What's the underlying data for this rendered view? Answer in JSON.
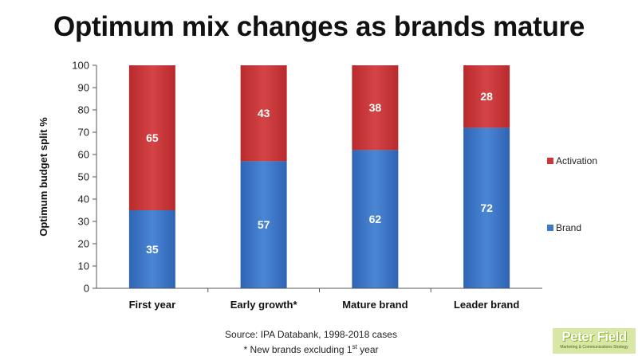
{
  "chart_data": {
    "type": "bar",
    "stacked": true,
    "title": "Optimum mix changes as brands mature",
    "ylabel": "Optimum budget split %",
    "xlabel": "",
    "ylim": [
      0,
      100
    ],
    "yticks": [
      "0",
      "10",
      "20",
      "30",
      "40",
      "50",
      "60",
      "70",
      "80",
      "90",
      "100"
    ],
    "categories": [
      "First year",
      "Early growth*",
      "Mature brand",
      "Leader brand"
    ],
    "series": [
      {
        "name": "Brand",
        "values": [
          35,
          57,
          62,
          72
        ],
        "color": "#3f7ac8"
      },
      {
        "name": "Activation",
        "values": [
          65,
          43,
          38,
          28
        ],
        "color": "#c9383a"
      }
    ],
    "legend": [
      {
        "name": "Activation",
        "color": "#c9383a"
      },
      {
        "name": "Brand",
        "color": "#3f7ac8"
      }
    ],
    "legend_position": "right"
  },
  "footer": {
    "source": "Source: IPA Databank, 1998-2018 cases",
    "note_prefix": "* New brands excluding 1",
    "note_sup": "st",
    "note_suffix": " year"
  },
  "logo": {
    "name": "Peter Field",
    "tagline": "Marketing & Communications Strategy"
  }
}
